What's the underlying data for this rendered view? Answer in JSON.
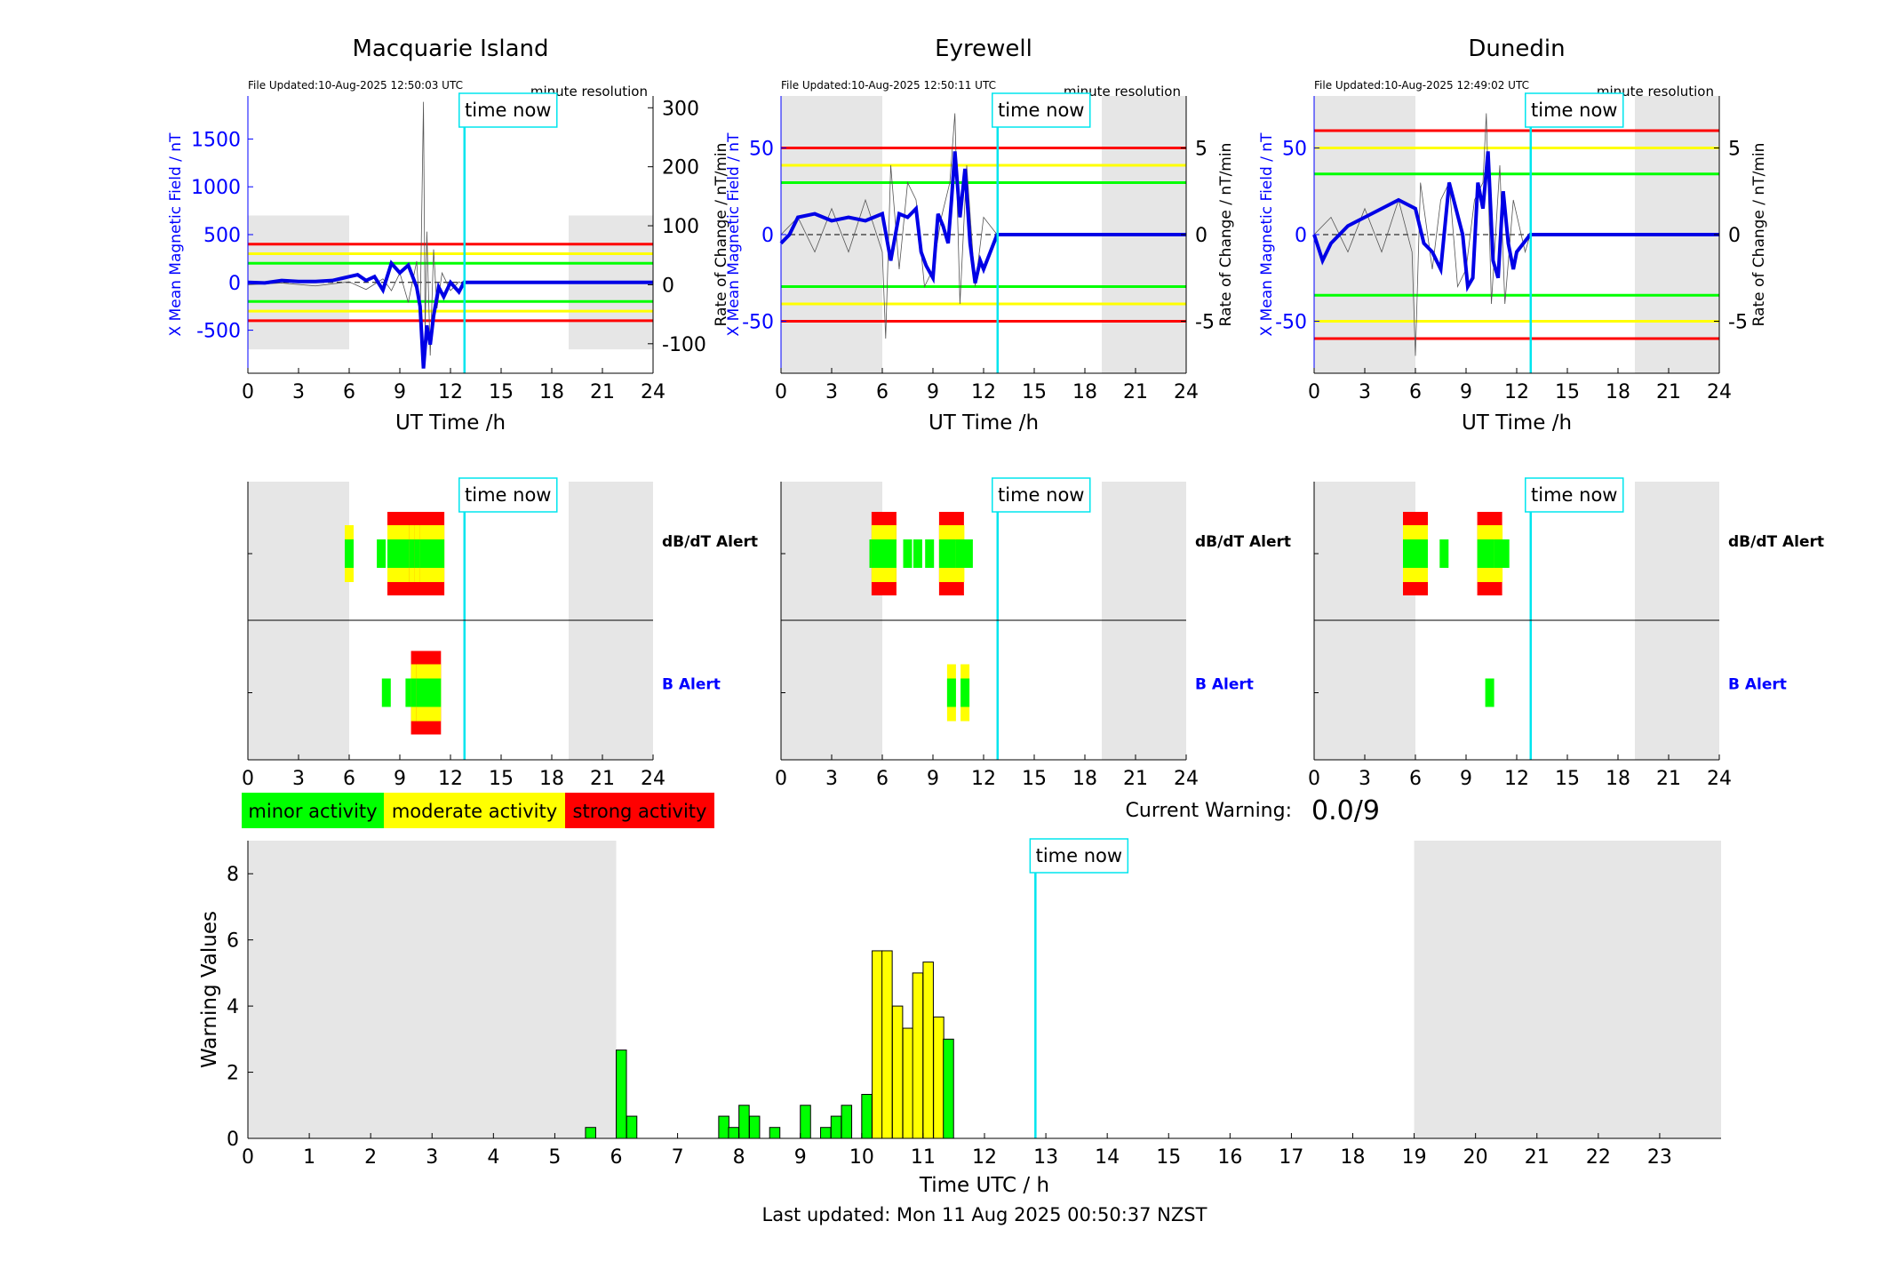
{
  "ticks_24": [
    "0",
    "3",
    "6",
    "9",
    "12",
    "15",
    "18",
    "21",
    "24"
  ],
  "time_now_label": "time now",
  "minute_res_label": "minute resolution",
  "ut_xlabel": "UT Time /h",
  "left_ylabel": "X Mean Magnetic Field / nT",
  "right_ylabel": "Rate of Change / nT/min",
  "dbdt_label": "dB/dT Alert",
  "b_label": "B Alert",
  "legend": [
    {
      "label": "minor activity",
      "color": "#00ff00"
    },
    {
      "label": "moderate activity",
      "color": "#ffff00"
    },
    {
      "label": "strong activity",
      "color": "#ff0000"
    }
  ],
  "current_warning_label": "Current Warning:",
  "current_warning_value": "0.0/9",
  "last_updated": "Last updated: Mon 11 Aug 2025 00:50:37 NZST",
  "colors": {
    "mean_field": "#0000e6",
    "time_now": "#00e5ee",
    "shade": "#e6e6e6",
    "red": "#ff0000",
    "yellow": "#ffff00",
    "green": "#00ff00"
  },
  "chart_data": [
    {
      "type": "line",
      "title": "Macquarie Island",
      "file_updated": "File Updated:10-Aug-2025 12:50:03 UTC",
      "xlim": [
        0,
        24
      ],
      "ylim": [
        -950,
        1950
      ],
      "yticks": [
        -500,
        0,
        500,
        1000,
        1500
      ],
      "ylim_right": [
        -150,
        320
      ],
      "yticks_right": [
        -100,
        0,
        100,
        200,
        300
      ],
      "time_now": 12.83,
      "shade": [
        [
          0,
          6
        ],
        [
          19,
          24
        ]
      ],
      "shade_y": [
        -700,
        700
      ],
      "thresholds": [
        {
          "value": 400,
          "color": "red"
        },
        {
          "value": 300,
          "color": "yellow"
        },
        {
          "value": 200,
          "color": "green"
        },
        {
          "value": -200,
          "color": "green"
        },
        {
          "value": -300,
          "color": "yellow"
        },
        {
          "value": -400,
          "color": "red"
        }
      ],
      "mean_field": {
        "x": [
          0,
          1,
          2,
          3,
          4,
          5,
          5.5,
          6,
          6.5,
          7,
          7.5,
          8,
          8.5,
          9,
          9.5,
          10,
          10.2,
          10.4,
          10.6,
          10.8,
          11,
          11.3,
          11.6,
          12,
          12.5,
          12.8,
          24
        ],
        "y": [
          0,
          -5,
          20,
          10,
          10,
          20,
          40,
          60,
          80,
          20,
          60,
          -80,
          200,
          100,
          180,
          -50,
          -250,
          -900,
          -450,
          -650,
          -350,
          -50,
          -150,
          0,
          -100,
          0,
          0
        ]
      },
      "rate_of_change": {
        "x": [
          0,
          2,
          4,
          6,
          7,
          8,
          8.5,
          9,
          9.5,
          10,
          10.2,
          10.4,
          10.5,
          10.6,
          10.8,
          11,
          11.2,
          11.5,
          12,
          12.5,
          12.8
        ],
        "y": [
          0,
          3,
          -2,
          5,
          -8,
          10,
          -10,
          20,
          -30,
          40,
          -60,
          310,
          -80,
          90,
          -120,
          60,
          -40,
          20,
          -10,
          5,
          0
        ]
      },
      "dbdt_alert": {
        "x": [
          6,
          7.9,
          9,
          9.4,
          10.3,
          10.6,
          10.9
        ],
        "level": [
          "moderate",
          "minor",
          "strong",
          "minor",
          "strong",
          "strong",
          "strong"
        ]
      },
      "b_alert": {
        "x": [
          8.2,
          9.6,
          10.4,
          10.7,
          11
        ],
        "level": [
          "minor",
          "minor",
          "strong",
          "strong",
          "moderate"
        ]
      }
    },
    {
      "type": "line",
      "title": "Eyrewell",
      "file_updated": "File Updated:10-Aug-2025 12:50:11 UTC",
      "xlim": [
        0,
        24
      ],
      "ylim": [
        -80,
        80
      ],
      "yticks": [
        -50,
        0,
        50
      ],
      "ylim_right": [
        -8,
        8
      ],
      "yticks_right": [
        -5,
        0,
        5
      ],
      "time_now": 12.83,
      "shade": [
        [
          0,
          6
        ],
        [
          19,
          24
        ]
      ],
      "shade_y": [
        -80,
        80
      ],
      "thresholds": [
        {
          "value": 50,
          "color": "red"
        },
        {
          "value": 40,
          "color": "yellow"
        },
        {
          "value": 30,
          "color": "green"
        },
        {
          "value": -30,
          "color": "green"
        },
        {
          "value": -40,
          "color": "yellow"
        },
        {
          "value": -50,
          "color": "red"
        }
      ],
      "mean_field": {
        "x": [
          0,
          0.5,
          1,
          2,
          3,
          4,
          5,
          6,
          6.5,
          7,
          7.5,
          8,
          8.3,
          8.6,
          9,
          9.3,
          9.6,
          9.9,
          10.1,
          10.3,
          10.6,
          10.9,
          11.2,
          11.5,
          11.8,
          12,
          12.4,
          12.8,
          24
        ],
        "y": [
          -5,
          0,
          10,
          12,
          8,
          10,
          8,
          12,
          -15,
          12,
          10,
          15,
          -10,
          -18,
          -25,
          12,
          5,
          -5,
          20,
          48,
          10,
          38,
          -5,
          -28,
          -15,
          -20,
          -10,
          0,
          0
        ]
      },
      "rate_of_change": {
        "x": [
          0,
          1,
          2,
          3,
          4,
          5,
          6,
          6.2,
          6.5,
          7,
          7.5,
          8,
          8.5,
          9,
          9.5,
          10,
          10.3,
          10.6,
          11,
          11.5,
          12,
          12.8
        ],
        "y": [
          0,
          1,
          -1,
          1.5,
          -1,
          2,
          -1,
          -6,
          4,
          -2,
          3,
          2,
          -3,
          -2,
          1,
          3,
          7,
          -4,
          4,
          -3,
          1,
          0
        ]
      },
      "dbdt_alert": {
        "x": [
          5.5,
          6.1,
          7.5,
          8.1,
          8.8,
          10.1,
          10.6,
          11.1
        ],
        "level": [
          "minor",
          "strong",
          "minor",
          "minor",
          "minor",
          "strong",
          "moderate",
          "minor"
        ]
      },
      "b_alert": {
        "x": [
          10.1,
          10.9
        ],
        "level": [
          "moderate",
          "moderate"
        ]
      }
    },
    {
      "type": "line",
      "title": "Dunedin",
      "file_updated": "File Updated:10-Aug-2025 12:49:02 UTC",
      "xlim": [
        0,
        24
      ],
      "ylim": [
        -80,
        80
      ],
      "yticks": [
        -50,
        0,
        50
      ],
      "ylim_right": [
        -8,
        8
      ],
      "yticks_right": [
        -5,
        0,
        5
      ],
      "time_now": 12.83,
      "shade": [
        [
          0,
          6
        ],
        [
          19,
          24
        ]
      ],
      "shade_y": [
        -80,
        80
      ],
      "thresholds": [
        {
          "value": 60,
          "color": "red"
        },
        {
          "value": 50,
          "color": "yellow"
        },
        {
          "value": 35,
          "color": "green"
        },
        {
          "value": -35,
          "color": "green"
        },
        {
          "value": -50,
          "color": "yellow"
        },
        {
          "value": -60,
          "color": "red"
        }
      ],
      "mean_field": {
        "x": [
          0,
          0.5,
          1,
          2,
          3,
          4,
          5,
          6,
          6.5,
          7,
          7.5,
          8,
          8.4,
          8.8,
          9.1,
          9.4,
          9.7,
          10,
          10.3,
          10.6,
          10.9,
          11.2,
          11.5,
          11.8,
          12,
          12.8,
          24
        ],
        "y": [
          0,
          -15,
          -5,
          5,
          10,
          15,
          20,
          15,
          -5,
          -10,
          -20,
          30,
          15,
          0,
          -30,
          -25,
          30,
          15,
          48,
          -15,
          -25,
          25,
          -5,
          -20,
          -10,
          0,
          0
        ]
      },
      "rate_of_change": {
        "x": [
          0,
          1,
          2,
          3,
          4,
          5,
          5.8,
          6,
          6.3,
          7,
          7.5,
          8,
          8.5,
          9,
          9.5,
          10,
          10.2,
          10.5,
          11,
          11.3,
          11.8,
          12.5,
          12.8
        ],
        "y": [
          0,
          1,
          -1,
          1.5,
          -1,
          2,
          -1,
          -7,
          3,
          -2,
          2,
          3,
          -3,
          -2,
          2,
          3,
          7,
          -4,
          4,
          -4,
          2,
          -1,
          0
        ]
      },
      "dbdt_alert": {
        "x": [
          6,
          7.7,
          10.4,
          10.9,
          11.3
        ],
        "level": [
          "strong",
          "minor",
          "strong",
          "moderate",
          "minor"
        ]
      },
      "b_alert": {
        "x": [
          10.4
        ],
        "level": [
          "minor"
        ]
      }
    },
    {
      "type": "bar",
      "xlabel": "Time UTC / h",
      "ylabel": "Warning Values",
      "xlim": [
        0,
        24
      ],
      "ylim": [
        0,
        9
      ],
      "yticks": [
        "0",
        "2",
        "4",
        "6",
        "8"
      ],
      "xticks": [
        "0",
        "1",
        "2",
        "3",
        "4",
        "5",
        "6",
        "7",
        "8",
        "9",
        "10",
        "11",
        "12",
        "13",
        "14",
        "15",
        "16",
        "17",
        "18",
        "19",
        "20",
        "21",
        "22",
        "23"
      ],
      "time_now": 12.83,
      "shade": [
        [
          0,
          6
        ],
        [
          19,
          24
        ]
      ],
      "bar_width_h": 0.1667,
      "bars": [
        {
          "x": 5.5,
          "v": 0.33,
          "c": "green"
        },
        {
          "x": 6.0,
          "v": 2.67,
          "c": "green"
        },
        {
          "x": 6.17,
          "v": 0.67,
          "c": "green"
        },
        {
          "x": 7.67,
          "v": 0.67,
          "c": "green"
        },
        {
          "x": 7.83,
          "v": 0.33,
          "c": "green"
        },
        {
          "x": 8.0,
          "v": 1.0,
          "c": "green"
        },
        {
          "x": 8.17,
          "v": 0.67,
          "c": "green"
        },
        {
          "x": 8.5,
          "v": 0.33,
          "c": "green"
        },
        {
          "x": 9.0,
          "v": 1.0,
          "c": "green"
        },
        {
          "x": 9.33,
          "v": 0.33,
          "c": "green"
        },
        {
          "x": 9.5,
          "v": 0.67,
          "c": "green"
        },
        {
          "x": 9.67,
          "v": 1.0,
          "c": "green"
        },
        {
          "x": 10.0,
          "v": 1.33,
          "c": "green"
        },
        {
          "x": 10.17,
          "v": 5.67,
          "c": "yellow"
        },
        {
          "x": 10.33,
          "v": 5.67,
          "c": "yellow"
        },
        {
          "x": 10.5,
          "v": 4.0,
          "c": "yellow"
        },
        {
          "x": 10.67,
          "v": 3.33,
          "c": "yellow"
        },
        {
          "x": 10.83,
          "v": 5.0,
          "c": "yellow"
        },
        {
          "x": 11.0,
          "v": 5.33,
          "c": "yellow"
        },
        {
          "x": 11.17,
          "v": 3.67,
          "c": "yellow"
        },
        {
          "x": 11.33,
          "v": 3.0,
          "c": "green"
        }
      ]
    }
  ]
}
